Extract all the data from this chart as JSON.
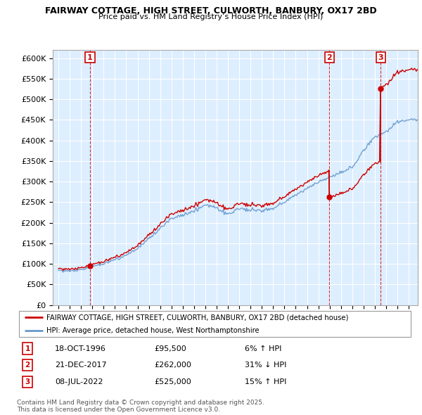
{
  "title": "FAIRWAY COTTAGE, HIGH STREET, CULWORTH, BANBURY, OX17 2BD",
  "subtitle": "Price paid vs. HM Land Registry’s House Price Index (HPI)",
  "ylabel_ticks": [
    "£0",
    "£50K",
    "£100K",
    "£150K",
    "£200K",
    "£250K",
    "£300K",
    "£350K",
    "£400K",
    "£450K",
    "£500K",
    "£550K",
    "£600K"
  ],
  "ytick_values": [
    0,
    50000,
    100000,
    150000,
    200000,
    250000,
    300000,
    350000,
    400000,
    450000,
    500000,
    550000,
    600000
  ],
  "xmin": 1993.5,
  "xmax": 2025.8,
  "ymin": 0,
  "ymax": 620000,
  "sale_dates": [
    1996.8,
    2017.97,
    2022.52
  ],
  "sale_prices": [
    95500,
    262000,
    525000
  ],
  "sale_labels": [
    "1",
    "2",
    "3"
  ],
  "red_line_color": "#cc0000",
  "blue_line_color": "#6699cc",
  "bg_color": "#ddeeff",
  "plot_bg_color": "#ddeeff",
  "grid_color": "#ffffff",
  "legend_entries": [
    "FAIRWAY COTTAGE, HIGH STREET, CULWORTH, BANBURY, OX17 2BD (detached house)",
    "HPI: Average price, detached house, West Northamptonshire"
  ],
  "table_data": [
    [
      "1",
      "18-OCT-1996",
      "£95,500",
      "6% ↑ HPI"
    ],
    [
      "2",
      "21-DEC-2017",
      "£262,000",
      "31% ↓ HPI"
    ],
    [
      "3",
      "08-JUL-2022",
      "£525,000",
      "15% ↑ HPI"
    ]
  ],
  "footer_text": "Contains HM Land Registry data © Crown copyright and database right 2025.\nThis data is licensed under the Open Government Licence v3.0."
}
